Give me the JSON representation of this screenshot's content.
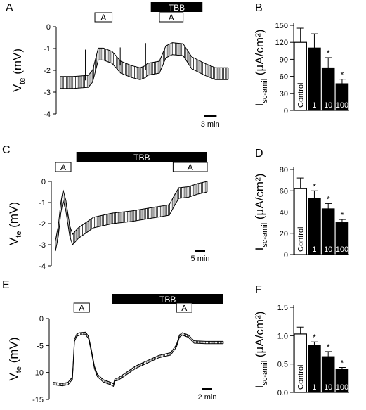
{
  "figure": {
    "panels": [
      {
        "id": "A",
        "type": "trace",
        "letter": "A",
        "ylabel_main": "V",
        "ylabel_sub": "te",
        "ylabel_unit": " (mV)",
        "y_ticks": [
          "0",
          "-1",
          "-2",
          "-3",
          "-4"
        ],
        "ylim": [
          -4,
          0
        ],
        "t_max": 39,
        "scale_bar": {
          "label": "3 min",
          "minutes": 3
        },
        "bars": [
          {
            "name": "A",
            "style": "box",
            "start": 8,
            "end": 12
          },
          {
            "name": "TBB",
            "style": "solid",
            "start": 21,
            "end": 33
          },
          {
            "name": "A",
            "style": "box",
            "start": 23,
            "end": 28.5
          }
        ],
        "points": [
          [
            0,
            -2.5
          ],
          [
            3,
            -2.5
          ],
          [
            6.5,
            -2.45
          ],
          [
            7.5,
            -2.2
          ],
          [
            8.8,
            -1.2
          ],
          [
            10,
            -1.2
          ],
          [
            12,
            -1.35
          ],
          [
            14,
            -1.8
          ],
          [
            16.5,
            -2.0
          ],
          [
            18.5,
            -2.1
          ],
          [
            19.8,
            -2.0
          ],
          [
            20.2,
            -1.9
          ],
          [
            23,
            -1.8
          ],
          [
            24.5,
            -1.1
          ],
          [
            26,
            -0.95
          ],
          [
            28.5,
            -1.0
          ],
          [
            30.5,
            -1.6
          ],
          [
            33.5,
            -1.9
          ],
          [
            36,
            -2.1
          ],
          [
            39,
            -2.1
          ]
        ],
        "amplitude": 0.55,
        "spikes": [
          [
            5.8,
            -1.05
          ],
          [
            13.9,
            -0.95
          ],
          [
            19.8,
            -0.75
          ]
        ]
      },
      {
        "id": "B",
        "type": "bar",
        "letter": "B",
        "ylabel_main": "I",
        "ylabel_sub": "sc-amil",
        "ylabel_unit": " (µA/cm²)",
        "y_ticks": [
          "0",
          "30",
          "60",
          "90",
          "120",
          "150"
        ],
        "ylim": [
          0,
          150
        ],
        "categories": [
          "Control",
          "1",
          "10",
          "100"
        ],
        "values": [
          120,
          110,
          75,
          47
        ],
        "errors": [
          25,
          25,
          18,
          8
        ],
        "significant": [
          false,
          false,
          true,
          true
        ],
        "star": "*"
      },
      {
        "id": "C",
        "type": "trace",
        "letter": "C",
        "ylabel_main": "V",
        "ylabel_sub": "te",
        "ylabel_unit": " (mV)",
        "y_ticks": [
          "0",
          "-1",
          "-2",
          "-3",
          "-4"
        ],
        "ylim": [
          -4,
          0
        ],
        "t_max": 80,
        "scale_bar": {
          "label": "5 min",
          "minutes": 5
        },
        "bars": [
          {
            "name": "A",
            "style": "box",
            "start": 0,
            "end": 6.5
          },
          {
            "name": "TBB",
            "style": "solid",
            "start": 11,
            "end": 80
          },
          {
            "name": "A",
            "style": "box",
            "start": 62,
            "end": 80
          }
        ],
        "points": [
          [
            0,
            -3.0
          ],
          [
            1.5,
            -2.3
          ],
          [
            2.8,
            -1.2
          ],
          [
            4,
            -0.6
          ],
          [
            5.5,
            -1.1
          ],
          [
            7.5,
            -2.3
          ],
          [
            9,
            -2.7
          ],
          [
            12,
            -2.4
          ],
          [
            20,
            -1.9
          ],
          [
            30,
            -1.7
          ],
          [
            40,
            -1.6
          ],
          [
            50,
            -1.45
          ],
          [
            57,
            -1.35
          ],
          [
            60,
            -1.3
          ],
          [
            63,
            -0.8
          ],
          [
            65,
            -0.5
          ],
          [
            70,
            -0.45
          ],
          [
            75,
            -0.3
          ],
          [
            80,
            -0.2
          ]
        ],
        "amplitude": 0.5,
        "spikes": []
      },
      {
        "id": "D",
        "type": "bar",
        "letter": "D",
        "ylabel_main": "I",
        "ylabel_sub": "sc-amil",
        "ylabel_unit": " (µA/cm²)",
        "y_ticks": [
          "0",
          "20",
          "40",
          "60",
          "80"
        ],
        "ylim": [
          0,
          80
        ],
        "categories": [
          "Control",
          "1",
          "10",
          "100"
        ],
        "values": [
          62,
          53,
          43,
          30
        ],
        "errors": [
          10,
          7,
          5,
          3
        ],
        "significant": [
          false,
          true,
          true,
          true
        ],
        "star": "*"
      },
      {
        "id": "E",
        "type": "trace",
        "letter": "E",
        "ylabel_main": "V",
        "ylabel_sub": "te",
        "ylabel_unit": " (mV)",
        "y_ticks": [
          "0",
          "-5",
          "-10",
          "-15"
        ],
        "ylim": [
          -15,
          0
        ],
        "t_max": 58,
        "scale_bar": {
          "label": "2 min",
          "minutes": 2
        },
        "bars": [
          {
            "name": "A",
            "style": "box",
            "start": 7,
            "end": 12
          },
          {
            "name": "TBB",
            "style": "solid",
            "start": 20,
            "end": 58
          },
          {
            "name": "A",
            "style": "box",
            "start": 42,
            "end": 45
          }
        ],
        "points": [
          [
            0,
            -12
          ],
          [
            3,
            -12.2
          ],
          [
            5,
            -12
          ],
          [
            6.5,
            -11
          ],
          [
            7.2,
            -4
          ],
          [
            8,
            -3
          ],
          [
            9,
            -2.8
          ],
          [
            11,
            -2.7
          ],
          [
            12,
            -3.5
          ],
          [
            13,
            -6
          ],
          [
            14,
            -9
          ],
          [
            15,
            -10.5
          ],
          [
            17,
            -11.5
          ],
          [
            19.5,
            -12
          ],
          [
            20.5,
            -12.3
          ],
          [
            21,
            -11.3
          ],
          [
            22,
            -11.2
          ],
          [
            24,
            -10.5
          ],
          [
            28,
            -9
          ],
          [
            32,
            -8
          ],
          [
            36,
            -7
          ],
          [
            40,
            -6.5
          ],
          [
            42,
            -5
          ],
          [
            43,
            -3.2
          ],
          [
            44,
            -2.8
          ],
          [
            46,
            -3.2
          ],
          [
            48,
            -4.3
          ],
          [
            52,
            -4.4
          ],
          [
            58,
            -4.4
          ]
        ],
        "amplitude": 0.45,
        "spikes": []
      },
      {
        "id": "F",
        "type": "bar",
        "letter": "F",
        "ylabel_main": "I",
        "ylabel_sub": "sc-amil",
        "ylabel_unit": " (µA/cm²)",
        "y_ticks": [
          "0.0",
          "0.5",
          "1.0",
          "1.5"
        ],
        "ylim": [
          0,
          1.5
        ],
        "categories": [
          "Control",
          "1",
          "10",
          "100"
        ],
        "values": [
          1.03,
          0.83,
          0.63,
          0.41
        ],
        "errors": [
          0.12,
          0.06,
          0.09,
          0.03
        ],
        "significant": [
          false,
          true,
          true,
          true
        ],
        "star": "*"
      }
    ]
  },
  "chart_data": [
    {
      "type": "line",
      "panel": "A",
      "ylabel": "Vte (mV)",
      "ylim": [
        -4,
        0
      ],
      "y_ticks": [
        0,
        -1,
        -2,
        -3,
        -4
      ],
      "x_units": "min",
      "scale_bar": "3 min",
      "treatments": [
        "A",
        "TBB",
        "A"
      ],
      "series": [
        {
          "x": [
            0,
            3,
            6.5,
            7.5,
            8.8,
            10,
            12,
            14,
            16.5,
            18.5,
            19.8,
            20.2,
            23,
            24.5,
            26,
            28.5,
            30.5,
            33.5,
            36,
            39
          ],
          "values": [
            -2.5,
            -2.5,
            -2.45,
            -2.2,
            -1.2,
            -1.2,
            -1.35,
            -1.8,
            -2.0,
            -2.1,
            -2.0,
            -1.9,
            -1.8,
            -1.1,
            -0.95,
            -1.0,
            -1.6,
            -1.9,
            -2.1,
            -2.1
          ]
        }
      ]
    },
    {
      "type": "bar",
      "panel": "B",
      "ylabel": "Isc-amil (µA/cm²)",
      "ylim": [
        0,
        150
      ],
      "categories": [
        "Control",
        "1",
        "10",
        "100"
      ],
      "values": [
        120,
        110,
        75,
        47
      ],
      "errors": [
        25,
        25,
        18,
        8
      ]
    },
    {
      "type": "line",
      "panel": "C",
      "ylabel": "Vte (mV)",
      "ylim": [
        -4,
        0
      ],
      "y_ticks": [
        0,
        -1,
        -2,
        -3,
        -4
      ],
      "x_units": "min",
      "scale_bar": "5 min",
      "treatments": [
        "A",
        "TBB",
        "A"
      ],
      "series": [
        {
          "x": [
            0,
            1.5,
            2.8,
            4,
            5.5,
            7.5,
            9,
            12,
            20,
            30,
            40,
            50,
            57,
            60,
            63,
            65,
            70,
            75,
            80
          ],
          "values": [
            -3.0,
            -2.3,
            -1.2,
            -0.6,
            -1.1,
            -2.3,
            -2.7,
            -2.4,
            -1.9,
            -1.7,
            -1.6,
            -1.45,
            -1.35,
            -1.3,
            -0.8,
            -0.5,
            -0.45,
            -0.3,
            -0.2
          ]
        }
      ]
    },
    {
      "type": "bar",
      "panel": "D",
      "ylabel": "Isc-amil (µA/cm²)",
      "ylim": [
        0,
        80
      ],
      "categories": [
        "Control",
        "1",
        "10",
        "100"
      ],
      "values": [
        62,
        53,
        43,
        30
      ],
      "errors": [
        10,
        7,
        5,
        3
      ]
    },
    {
      "type": "line",
      "panel": "E",
      "ylabel": "Vte (mV)",
      "ylim": [
        -15,
        0
      ],
      "y_ticks": [
        0,
        -5,
        -10,
        -15
      ],
      "x_units": "min",
      "scale_bar": "2 min",
      "treatments": [
        "A",
        "TBB",
        "A"
      ],
      "series": [
        {
          "x": [
            0,
            3,
            5,
            6.5,
            7.2,
            8,
            9,
            11,
            12,
            13,
            14,
            15,
            17,
            19.5,
            20.5,
            21,
            22,
            24,
            28,
            32,
            36,
            40,
            42,
            43,
            44,
            46,
            48,
            52,
            58
          ],
          "values": [
            -12,
            -12.2,
            -12,
            -11,
            -4,
            -3,
            -2.8,
            -2.7,
            -3.5,
            -6,
            -9,
            -10.5,
            -11.5,
            -12,
            -12.3,
            -11.3,
            -11.2,
            -10.5,
            -9,
            -8,
            -7,
            -6.5,
            -5,
            -3.2,
            -2.8,
            -3.2,
            -4.3,
            -4.4,
            -4.4
          ]
        }
      ]
    },
    {
      "type": "bar",
      "panel": "F",
      "ylabel": "Isc-amil (µA/cm²)",
      "ylim": [
        0,
        1.5
      ],
      "categories": [
        "Control",
        "1",
        "10",
        "100"
      ],
      "values": [
        1.03,
        0.83,
        0.63,
        0.41
      ],
      "errors": [
        0.12,
        0.06,
        0.09,
        0.03
      ]
    }
  ]
}
